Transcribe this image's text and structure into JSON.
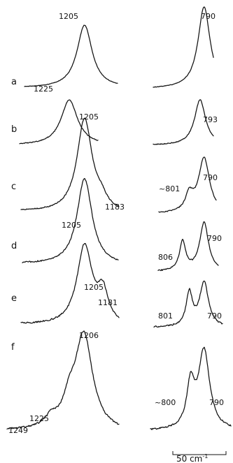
{
  "chart_data": {
    "type": "line",
    "scale_bar": {
      "label": "50 cm",
      "exponent": "-1",
      "value_cm-1": 50
    },
    "panels": [
      {
        "id": "left",
        "traces": [
          {
            "label": "a",
            "peaks": [
              {
                "label": "1205",
                "position": 1205,
                "relative_height": 1.0
              }
            ]
          },
          {
            "label": "b",
            "peaks": [
              {
                "label": "1225",
                "position": 1225,
                "relative_height": 1.0
              }
            ]
          },
          {
            "label": "c",
            "peaks": [
              {
                "label": "1205",
                "position": 1205,
                "relative_height": 1.0
              },
              {
                "label": "1183",
                "position": 1183,
                "relative_height": 0.1
              }
            ]
          },
          {
            "label": "d",
            "peaks": [
              {
                "label": "1205",
                "position": 1205,
                "relative_height": 1.0
              }
            ]
          },
          {
            "label": "e",
            "peaks": [
              {
                "label": "1205",
                "position": 1205,
                "relative_height": 1.0
              },
              {
                "label": "1181",
                "position": 1181,
                "relative_height": 0.38
              }
            ]
          },
          {
            "label": "f",
            "peaks": [
              {
                "label": "1206",
                "position": 1206,
                "relative_height": 1.0
              },
              {
                "label": "1225",
                "position": 1225,
                "relative_height": 0.22
              },
              {
                "label": "1249",
                "position": 1249,
                "relative_height": 0.1
              }
            ]
          }
        ]
      },
      {
        "id": "right",
        "traces": [
          {
            "label": "a",
            "peaks": [
              {
                "label": "790",
                "position": 790,
                "relative_height": 1.0
              }
            ]
          },
          {
            "label": "b",
            "peaks": [
              {
                "label": "793",
                "position": 793,
                "relative_height": 1.0
              }
            ]
          },
          {
            "label": "c",
            "peaks": [
              {
                "label": "790",
                "position": 790,
                "relative_height": 1.0
              },
              {
                "label": "~801",
                "position": 801,
                "relative_height": 0.3
              }
            ]
          },
          {
            "label": "d",
            "peaks": [
              {
                "label": "790",
                "position": 790,
                "relative_height": 1.0
              },
              {
                "label": "806",
                "position": 806,
                "relative_height": 0.6
              }
            ]
          },
          {
            "label": "e",
            "peaks": [
              {
                "label": "790",
                "position": 790,
                "relative_height": 1.0
              },
              {
                "label": "801",
                "position": 801,
                "relative_height": 0.75
              }
            ]
          },
          {
            "label": "f",
            "peaks": [
              {
                "label": "790",
                "position": 790,
                "relative_height": 1.0
              },
              {
                "label": "~800",
                "position": 800,
                "relative_height": 0.55
              }
            ]
          }
        ]
      }
    ]
  }
}
